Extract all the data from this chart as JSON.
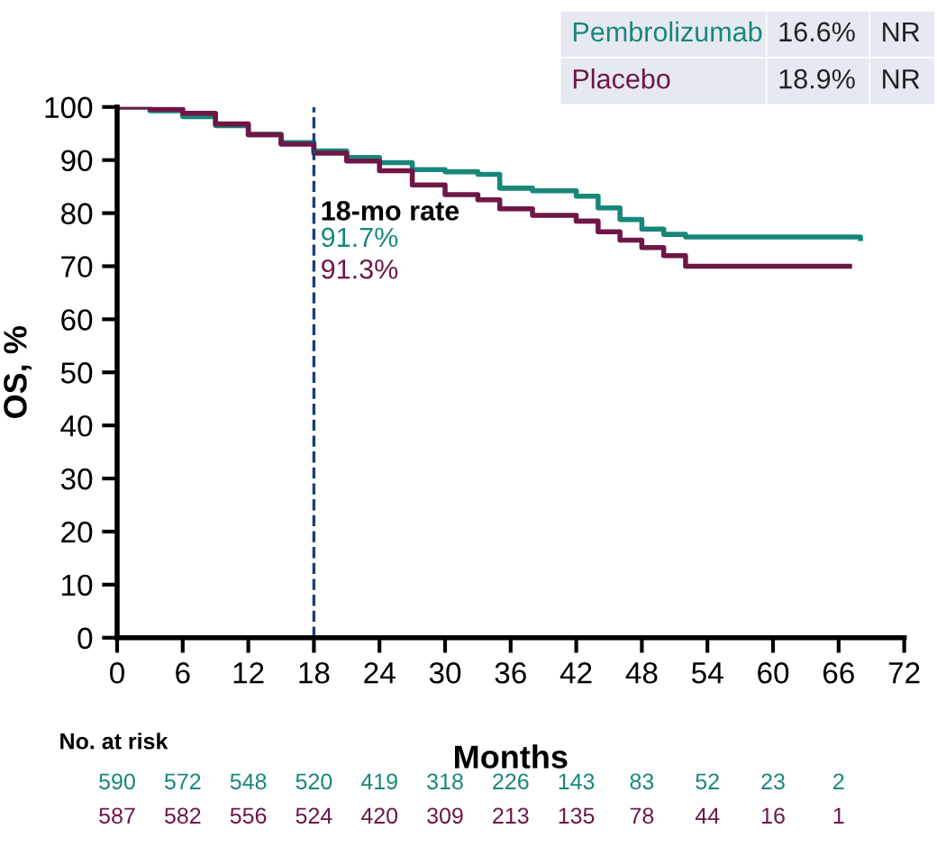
{
  "chart_data": {
    "type": "step",
    "ylabel": "OS, %",
    "xlabel": "Months",
    "xlim": [
      0,
      72
    ],
    "xticks": [
      0,
      6,
      12,
      18,
      24,
      30,
      36,
      42,
      48,
      54,
      60,
      66,
      72
    ],
    "ylim": [
      0,
      100
    ],
    "yticks": [
      0,
      10,
      20,
      30,
      40,
      50,
      60,
      70,
      80,
      90,
      100
    ],
    "grid": false,
    "legend": "top right",
    "marker": "none",
    "line_style": "solid",
    "series": [
      {
        "name": "Pembrolizumab",
        "color": "#17877a",
        "x": [
          0,
          3,
          6,
          9,
          12,
          15,
          18,
          21,
          24,
          27,
          30,
          33,
          35,
          38,
          42,
          44,
          46,
          48,
          50,
          52,
          60,
          68
        ],
        "values": [
          100,
          99.3,
          98.2,
          96.5,
          94.8,
          93.3,
          91.7,
          90.5,
          89.5,
          88.2,
          87.8,
          87.3,
          84.7,
          84.2,
          83.2,
          81,
          78.8,
          77,
          76,
          75.5,
          75.5,
          75.2
        ]
      },
      {
        "name": "Placebo",
        "color": "#6e1746",
        "x": [
          0,
          3,
          6,
          9,
          12,
          15,
          18,
          21,
          24,
          27,
          30,
          33,
          35,
          38,
          42,
          44,
          46,
          48,
          50,
          52,
          60,
          67
        ],
        "values": [
          100,
          99.6,
          98.8,
          96.8,
          94.8,
          93,
          91.3,
          89.8,
          88,
          85.3,
          83.5,
          82.5,
          80.8,
          79.6,
          78.5,
          76.5,
          74.9,
          73.5,
          72,
          70,
          70,
          70
        ]
      }
    ],
    "ref_lines": [
      {
        "axis": "x",
        "value": 18,
        "label": "18-mo rate",
        "color": "#1f3b7a",
        "line_style": "dashed"
      }
    ],
    "annotations": [
      "91.7%",
      "91.3%",
      "16.6%",
      "18.9%",
      "NR",
      "NR",
      "No. at risk",
      "590 572 548 520 419 318 226 143 83 52 23 2",
      "587 582 556 524 420 309 213 135 78 44 16 1"
    ]
  }
}
